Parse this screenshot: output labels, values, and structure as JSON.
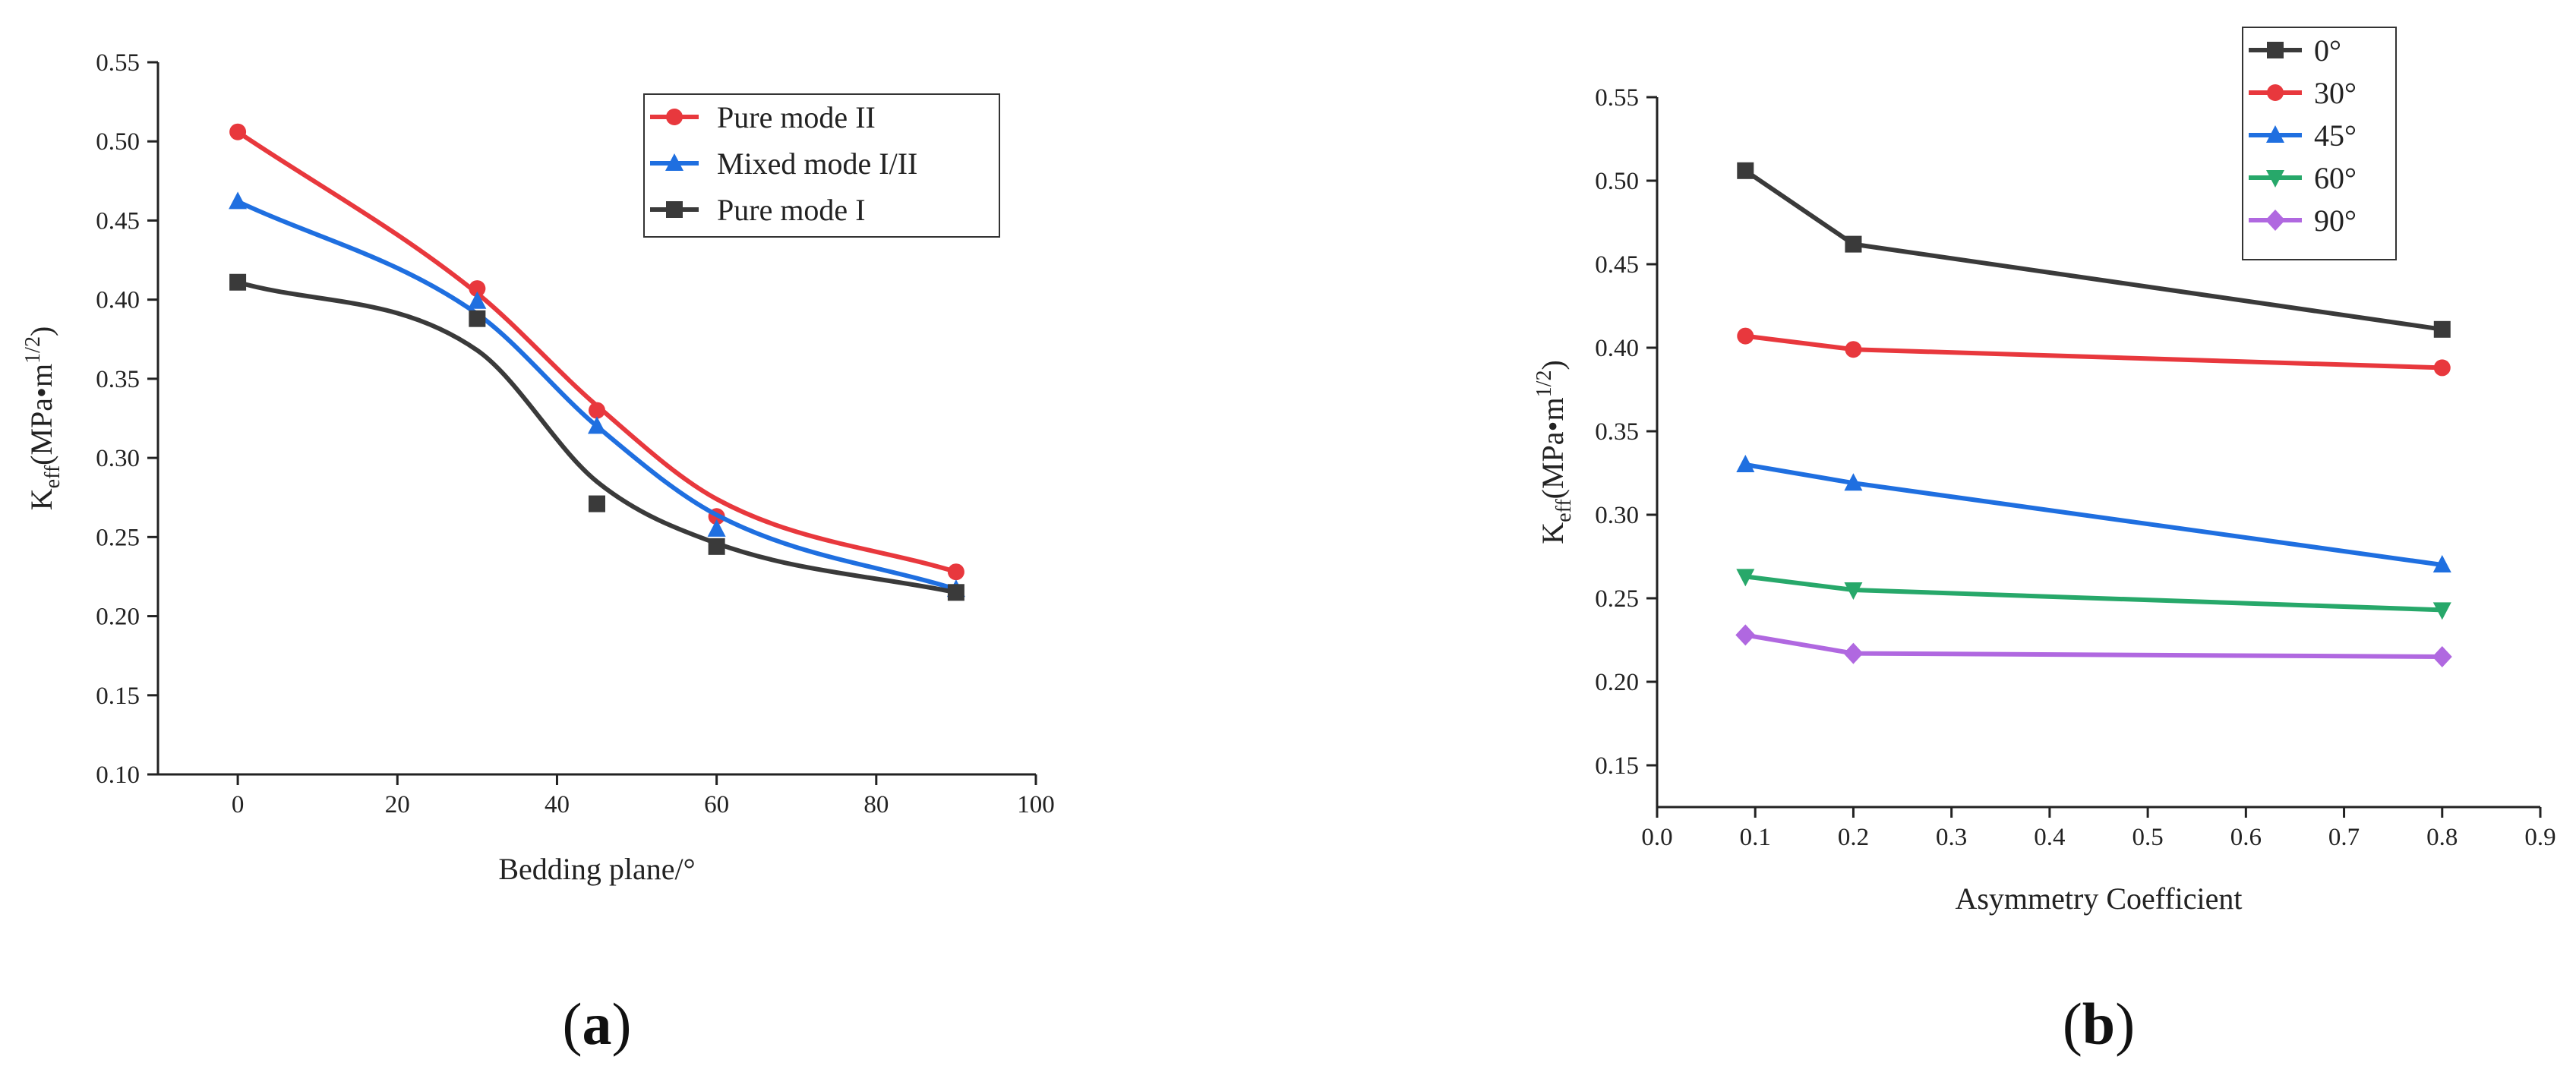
{
  "chart_data": [
    {
      "type": "line",
      "panel_label": "a",
      "title": "",
      "xlabel": "Bedding plane/°",
      "ylabel_main": "K",
      "ylabel_sub": "eff",
      "ylabel_rest": "(MPa•m",
      "ylabel_sup": "1/2",
      "ylabel_close": ")",
      "xlim": [
        -10,
        100
      ],
      "ylim": [
        0.1,
        0.55
      ],
      "xticks": [
        0,
        20,
        40,
        60,
        80,
        100
      ],
      "yticks": [
        0.1,
        0.15,
        0.2,
        0.25,
        0.3,
        0.35,
        0.4,
        0.45,
        0.5,
        0.55
      ],
      "xtick_labels": [
        "0",
        "20",
        "40",
        "60",
        "80",
        "100"
      ],
      "ytick_labels": [
        "0.10",
        "0.15",
        "0.20",
        "0.25",
        "0.30",
        "0.35",
        "0.40",
        "0.45",
        "0.50",
        "0.55"
      ],
      "smooth": true,
      "legend_position": "top-right",
      "x": [
        0,
        30,
        45,
        60,
        90
      ],
      "series": [
        {
          "name": "Pure mode II",
          "color": "#e8383d",
          "marker": "circle",
          "values": [
            0.506,
            0.407,
            0.33,
            0.263,
            0.228
          ],
          "curve": [
            0.506,
            0.404,
            0.333,
            0.274,
            0.228
          ]
        },
        {
          "name": "Mixed mode I/II",
          "color": "#1f6fe0",
          "marker": "triangle-up",
          "values": [
            0.462,
            0.399,
            0.32,
            0.255,
            0.217
          ],
          "curve": [
            0.462,
            0.391,
            0.32,
            0.264,
            0.217
          ]
        },
        {
          "name": "Pure mode I",
          "color": "#3a3a3a",
          "marker": "square",
          "values": [
            0.411,
            0.388,
            0.271,
            0.244,
            0.215
          ],
          "curve": [
            0.411,
            0.368,
            0.285,
            0.246,
            0.215
          ]
        }
      ]
    },
    {
      "type": "line",
      "panel_label": "b",
      "title": "",
      "xlabel": "Asymmetry Coefficient",
      "ylabel_main": "K",
      "ylabel_sub": "eff",
      "ylabel_rest": "(MPa•m",
      "ylabel_sup": "1/2",
      "ylabel_close": ")",
      "xlim": [
        0.0,
        0.9
      ],
      "ylim": [
        0.125,
        0.55
      ],
      "xticks": [
        0.0,
        0.1,
        0.2,
        0.3,
        0.4,
        0.5,
        0.6,
        0.7,
        0.8,
        0.9
      ],
      "yticks": [
        0.15,
        0.2,
        0.25,
        0.3,
        0.35,
        0.4,
        0.45,
        0.5,
        0.55
      ],
      "xtick_labels": [
        "0.0",
        "0.1",
        "0.2",
        "0.3",
        "0.4",
        "0.5",
        "0.6",
        "0.7",
        "0.8",
        "0.9"
      ],
      "ytick_labels": [
        "0.15",
        "0.20",
        "0.25",
        "0.30",
        "0.35",
        "0.40",
        "0.45",
        "0.50",
        "0.55"
      ],
      "smooth": false,
      "legend_position": "top-right",
      "x": [
        0.09,
        0.2,
        0.8
      ],
      "series": [
        {
          "name": "0°",
          "color": "#3a3a3a",
          "marker": "square",
          "values": [
            0.506,
            0.462,
            0.411
          ]
        },
        {
          "name": "30°",
          "color": "#e8383d",
          "marker": "circle",
          "values": [
            0.407,
            0.399,
            0.388
          ]
        },
        {
          "name": "45°",
          "color": "#1f6fe0",
          "marker": "triangle-up",
          "values": [
            0.33,
            0.319,
            0.27
          ]
        },
        {
          "name": "60°",
          "color": "#27a86a",
          "marker": "triangle-down",
          "values": [
            0.263,
            0.255,
            0.243
          ]
        },
        {
          "name": "90°",
          "color": "#b068e0",
          "marker": "diamond",
          "values": [
            0.228,
            0.217,
            0.215
          ]
        }
      ]
    }
  ]
}
